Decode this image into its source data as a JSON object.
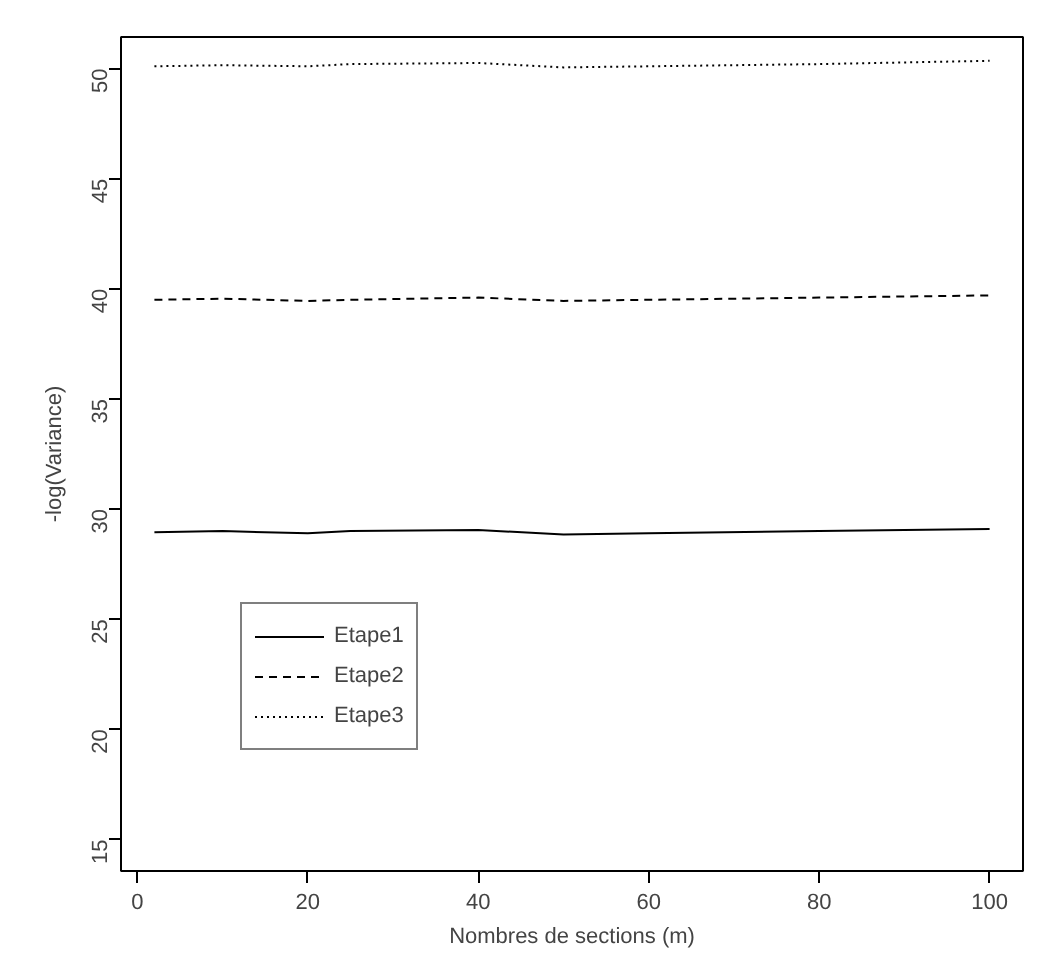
{
  "chart_data": {
    "type": "line",
    "xlabel": "Nombres de sections (m)",
    "ylabel": "-log(Variance)",
    "x": [
      2,
      10,
      20,
      25,
      40,
      50,
      60,
      80,
      100
    ],
    "series": [
      {
        "name": "Etape1",
        "color": "#000000",
        "line_style": "solid",
        "values": [
          28.95,
          29.0,
          28.9,
          29.0,
          29.05,
          28.85,
          28.9,
          29.0,
          29.1
        ]
      },
      {
        "name": "Etape2",
        "color": "#000000",
        "line_style": "dashed",
        "values": [
          39.5,
          39.55,
          39.45,
          39.5,
          39.6,
          39.45,
          39.5,
          39.6,
          39.7
        ]
      },
      {
        "name": "Etape3",
        "color": "#000000",
        "line_style": "dotted",
        "values": [
          50.1,
          50.15,
          50.1,
          50.2,
          50.25,
          50.05,
          50.1,
          50.2,
          50.35
        ]
      }
    ],
    "xlim": [
      -1.92,
      103.92
    ],
    "ylim": [
      13.57,
      51.43
    ],
    "xticks": [
      0,
      20,
      40,
      60,
      80,
      100
    ],
    "yticks": [
      15,
      20,
      25,
      30,
      35,
      40,
      45,
      50
    ],
    "grid": false,
    "legend": "bottom left",
    "marker": "none"
  }
}
